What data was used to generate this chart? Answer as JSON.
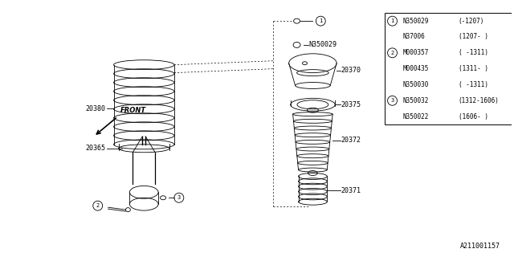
{
  "bg_color": "#ffffff",
  "line_color": "#000000",
  "footer_text": "A211001157",
  "table": {
    "rows": [
      {
        "circle": "1",
        "part": "N350029",
        "date": "(-1207)"
      },
      {
        "circle": "",
        "part": "N37006",
        "date": "(1207- )"
      },
      {
        "circle": "2",
        "part": "M000357",
        "date": "( -1311)"
      },
      {
        "circle": "",
        "part": "M000435",
        "date": "(1311- )"
      },
      {
        "circle": "",
        "part": "N350030",
        "date": "( -1311)"
      },
      {
        "circle": "3",
        "part": "N350032",
        "date": "(1312-1606)"
      },
      {
        "circle": "",
        "part": "N350022",
        "date": "(1606- )"
      }
    ]
  }
}
